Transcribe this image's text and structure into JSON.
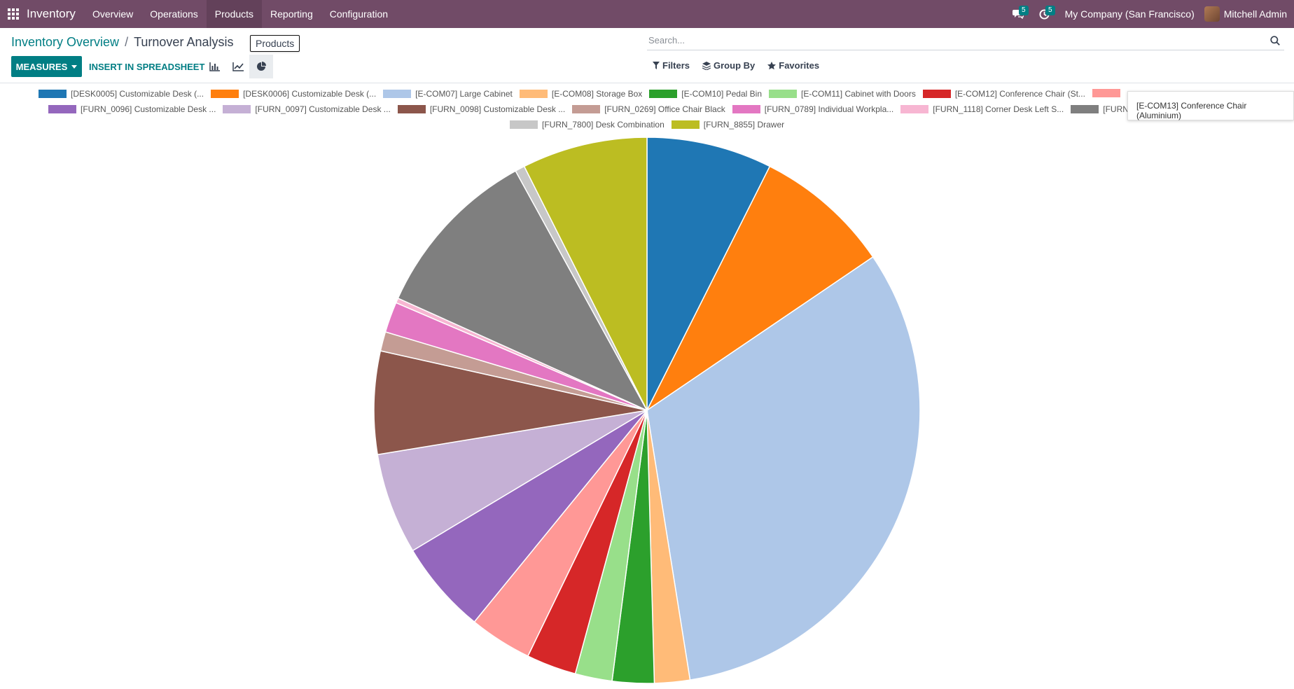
{
  "navbar": {
    "brand": "Inventory",
    "menu": [
      "Overview",
      "Operations",
      "Products",
      "Reporting",
      "Configuration"
    ],
    "messages_count": "5",
    "activities_count": "5",
    "company": "My Company (San Francisco)",
    "user": "Mitchell Admin"
  },
  "breadcrumb": {
    "parent": "Inventory Overview",
    "separator": "/",
    "current": "Turnover Analysis"
  },
  "tooltip": "Products",
  "toolbar": {
    "measures_label": "MEASURES",
    "insert_label": "INSERT IN SPREADSHEET",
    "views": [
      "bar-chart",
      "line-chart",
      "pie-chart"
    ],
    "active_view": "pie-chart"
  },
  "search": {
    "placeholder": "Search...",
    "filters_label": "Filters",
    "groupby_label": "Group By",
    "favorites_label": "Favorites"
  },
  "hover_tooltip": "[E-COM13] Conference Chair (Aluminium)",
  "legend_rows": [
    [
      0,
      1,
      2,
      3,
      4,
      5,
      6,
      7
    ],
    [
      8,
      9,
      10,
      11,
      12,
      13,
      14
    ],
    [
      15,
      16
    ]
  ],
  "chart_data": {
    "type": "pie",
    "labels": [
      "[DESK0005] Customizable Desk (...",
      "[DESK0006] Customizable Desk (...",
      "[E-COM07] Large Cabinet",
      "[E-COM08] Storage Box",
      "[E-COM10] Pedal Bin",
      "[E-COM11] Cabinet with Doors",
      "[E-COM12] Conference Chair (St...",
      "[E-COM13] Conference Chair (Aluminium)",
      "[FURN_0096] Customizable Desk ...",
      "[FURN_0097] Customizable Desk ...",
      "[FURN_0098] Customizable Desk ...",
      "[FURN_0269] Office Chair Black",
      "[FURN_0789] Individual Workpla...",
      "[FURN_1118] Corner Desk Left S...",
      "[FURN",
      "[FURN_7800] Desk Combination",
      "[FURN_8855] Drawer"
    ],
    "legend_labels": [
      "[DESK0005] Customizable Desk (...",
      "[DESK0006] Customizable Desk (...",
      "[E-COM07] Large Cabinet",
      "[E-COM08] Storage Box",
      "[E-COM10] Pedal Bin",
      "[E-COM11] Cabinet with Doors",
      "[E-COM12] Conference Chair (St...",
      "",
      "[FURN_0096] Customizable Desk ...",
      "[FURN_0097] Customizable Desk ...",
      "[FURN_0098] Customizable Desk ...",
      "[FURN_0269] Office Chair Black",
      "[FURN_0789] Individual Workpla...",
      "[FURN_1118] Corner Desk Left S...",
      "[FURN",
      "[FURN_7800] Desk Combination",
      "[FURN_8855] Drawer"
    ],
    "values": [
      7.8,
      8.5,
      33.6,
      2.2,
      2.6,
      2.3,
      3.1,
      3.9,
      5.8,
      6.3,
      6.4,
      1.2,
      1.9,
      0.3,
      10.8,
      0.6,
      7.8
    ],
    "colors": [
      "#1f77b4",
      "#ff7f0e",
      "#aec7e8",
      "#ffbb78",
      "#2ca02c",
      "#98df8a",
      "#d62728",
      "#ff9896",
      "#9467bd",
      "#c5b0d5",
      "#8c564b",
      "#c49c94",
      "#e377c2",
      "#f7b6d2",
      "#7f7f7f",
      "#c7c7c7",
      "#bcbd22"
    ],
    "legend_placement": "top"
  }
}
